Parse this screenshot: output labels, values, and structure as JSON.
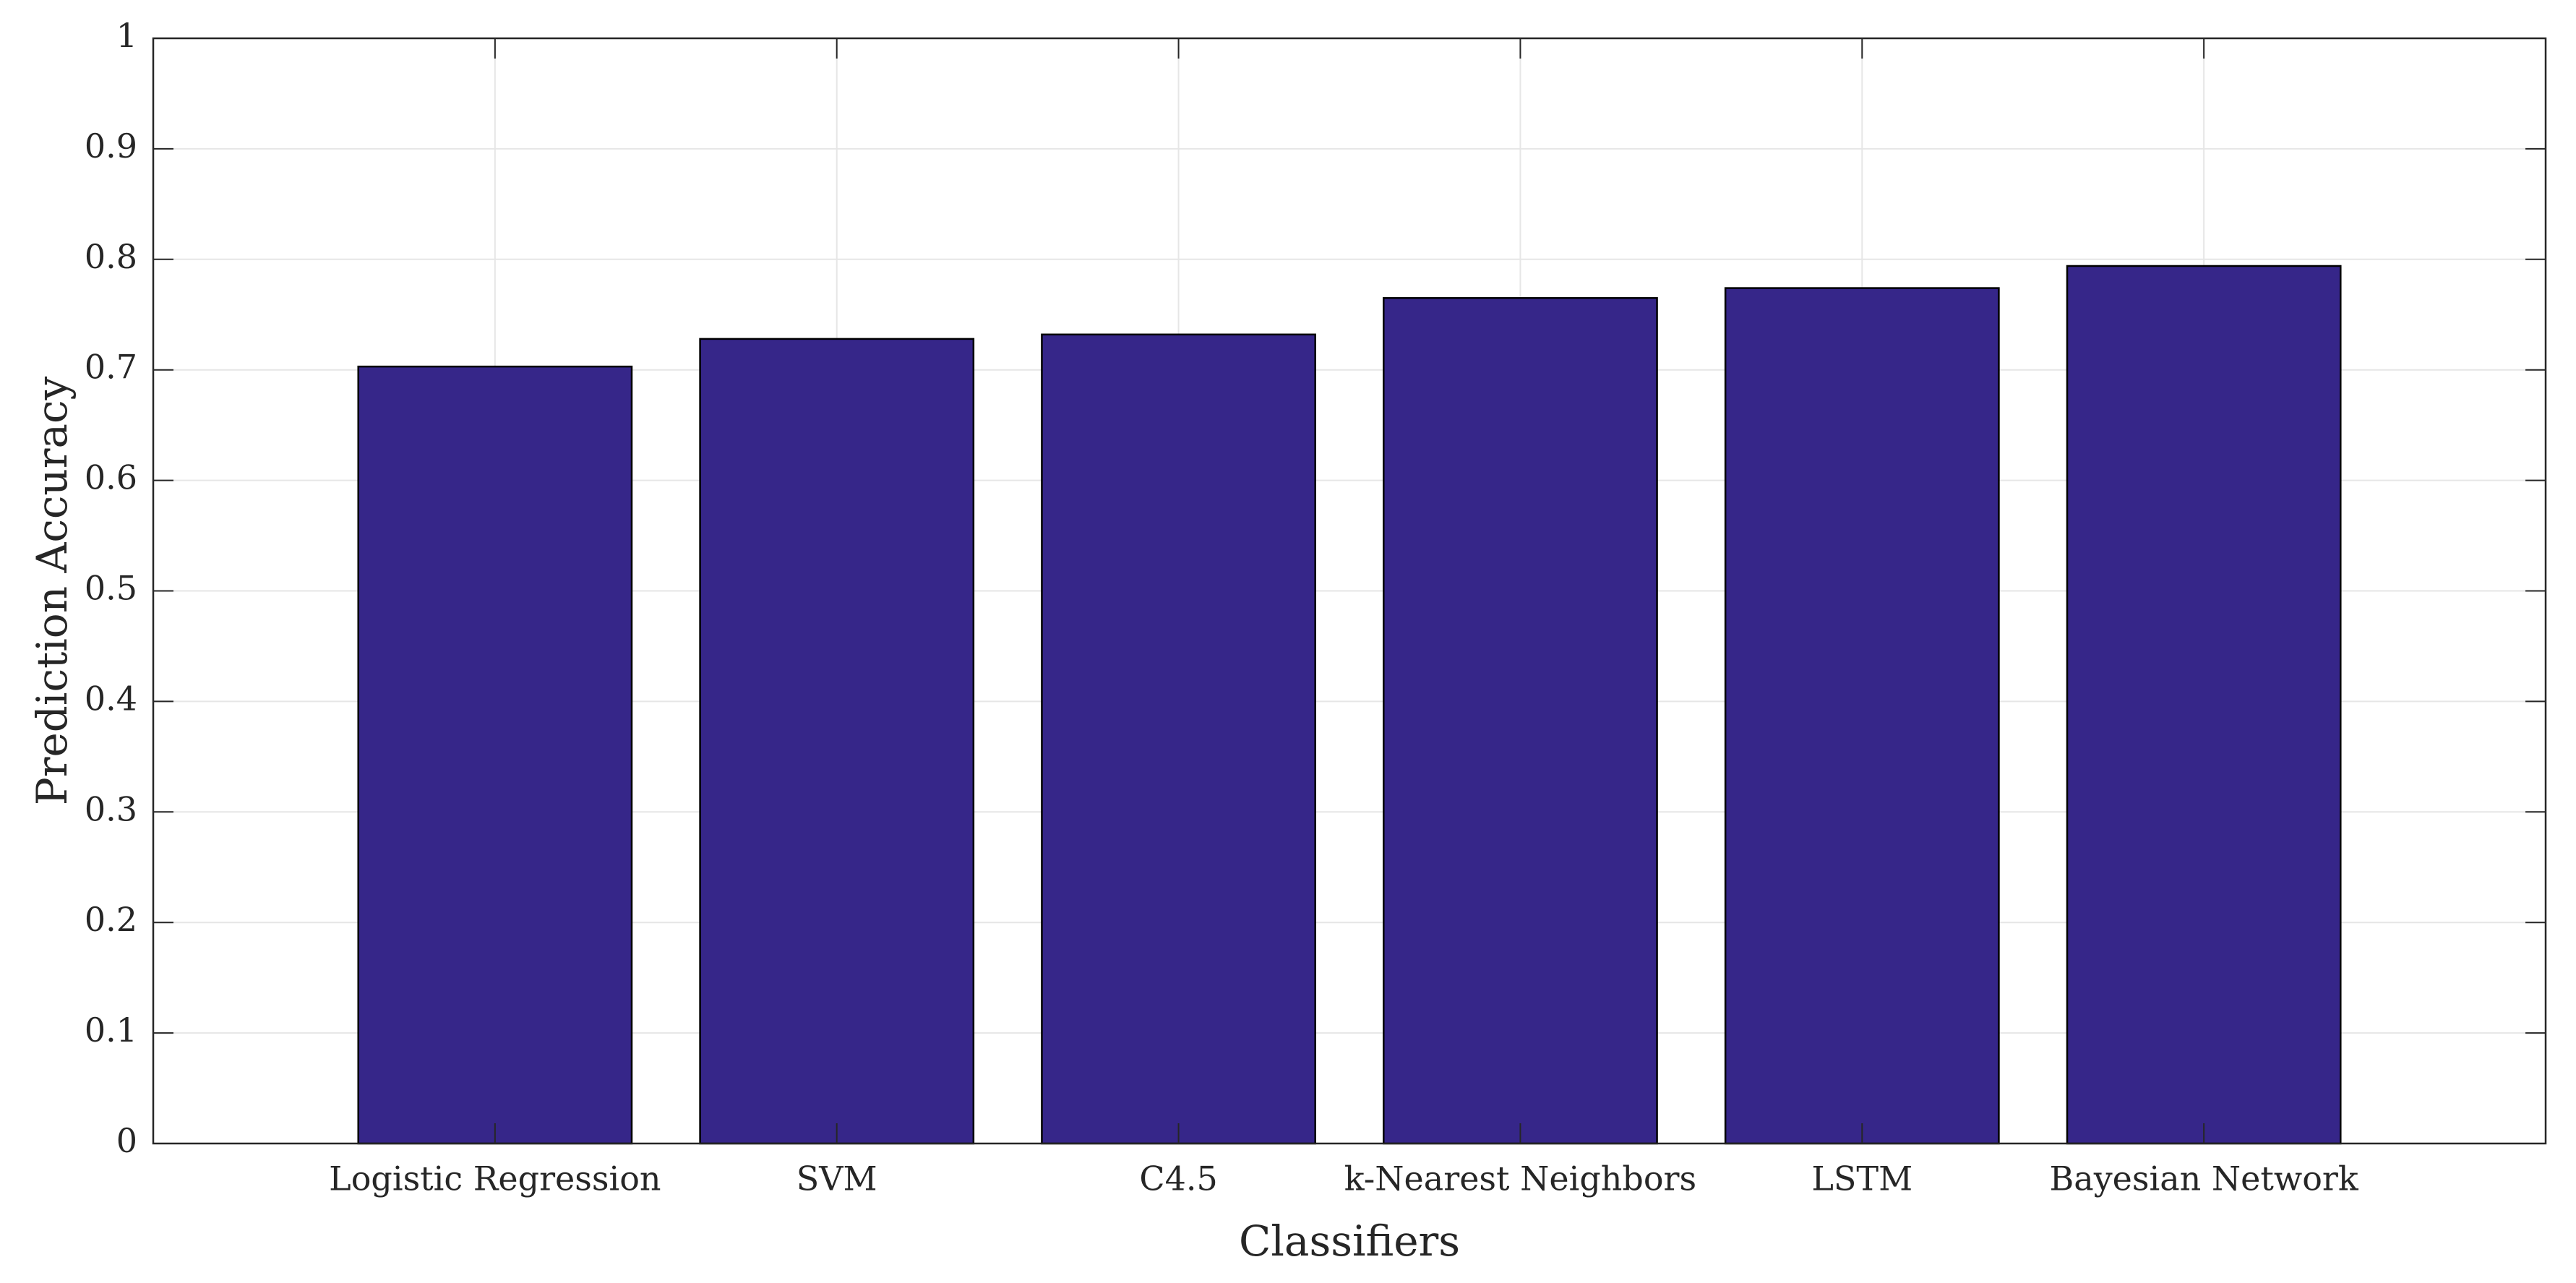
{
  "chart_data": {
    "type": "bar",
    "title": "",
    "xlabel": "Classifiers",
    "ylabel": "Prediction Accuracy",
    "categories": [
      "Logistic Regression",
      "SVM",
      "C4.5",
      "k-Nearest Neighbors",
      "LSTM",
      "Bayesian Network"
    ],
    "values": [
      0.703,
      0.728,
      0.732,
      0.765,
      0.774,
      0.794
    ],
    "xlim": [
      0,
      7
    ],
    "ylim": [
      0,
      1
    ],
    "y_ticks": [
      "0",
      "0.1",
      "0.2",
      "0.3",
      "0.4",
      "0.5",
      "0.6",
      "0.7",
      "0.8",
      "0.9",
      "1"
    ],
    "grid": true,
    "legend": "none",
    "bar_color": "#362689",
    "bar_edge_color": "#000000",
    "grid_color": "#e6e6e6",
    "axis_color": "#262626"
  }
}
